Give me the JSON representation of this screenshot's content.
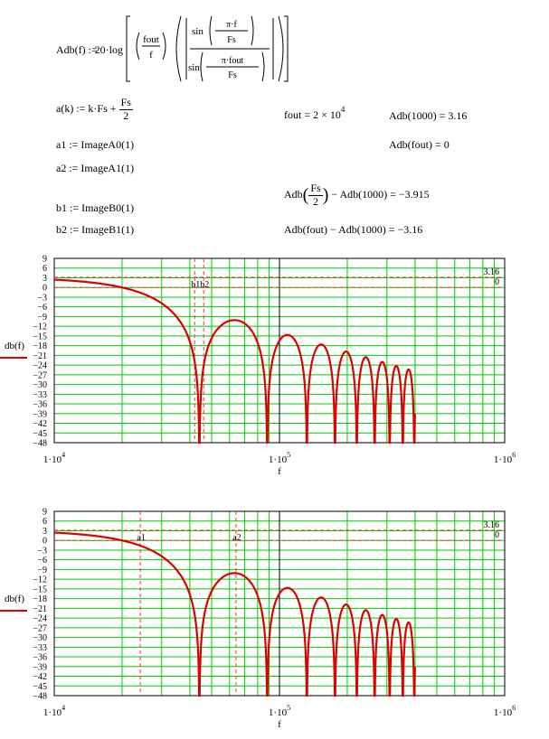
{
  "formulas": {
    "adb_lhs": "Adb(f) :=",
    "adb_factor": "20·log",
    "adb_fout": "fout",
    "adb_f": "f",
    "adb_sin": "sin",
    "adb_pi_f": "π·f",
    "adb_fs": "Fs",
    "adb_pi_fout": "π·fout",
    "a_def_lhs": "a(k) := k·Fs +",
    "a_def_num": "Fs",
    "a_def_den": "2",
    "a1_def": "a1 := ImageA0(1)",
    "a2_def": "a2 := ImageA1(1)",
    "b1_def": "b1 := ImageB0(1)",
    "b2_def": "b2 := ImageB1(1)",
    "fout_lhs": "fout = 2 × 10",
    "fout_exp": "4",
    "adb1000": "Adb(1000) = 3.16",
    "adbfout": "Adb(fout) = 0",
    "adbfs2_lhs": "Adb",
    "adbfs2_num": "Fs",
    "adbfs2_den": "2",
    "adbfs2_rhs": "− Adb(1000) = −3.915",
    "adbdiff": "Adb(fout) − Adb(1000) = −3.16"
  },
  "chart_data": [
    {
      "type": "line",
      "x_scale": "log",
      "xlim": [
        10000,
        1000000
      ],
      "ylim": [
        -48,
        9
      ],
      "yticks": [
        9,
        6,
        3,
        0,
        -3,
        -6,
        -9,
        -12,
        -15,
        -18,
        -21,
        -24,
        -27,
        -30,
        -33,
        -36,
        -39,
        -42,
        -45,
        -48
      ],
      "ytick_labels": [
        "9",
        "6",
        "3",
        "0",
        "−3",
        "−6",
        "−9",
        "−12",
        "−15",
        "−18",
        "−21",
        "−24",
        "−27",
        "−30",
        "−33",
        "−36",
        "−39",
        "−42",
        "−45",
        "−48"
      ],
      "xtick_bases": [
        "1·10",
        "1·10",
        "1·10"
      ],
      "xtick_exps": [
        "4",
        "5",
        "6"
      ],
      "xlabel": "f",
      "ylabel": "db(f)",
      "grid": true,
      "series": [
        {
          "expression": "Adb(f)",
          "sample_rate_Fs": 44100,
          "fout": 20000,
          "x_range": [
            10000,
            400000
          ]
        }
      ],
      "markers": [
        {
          "label": "b1",
          "x": 42000
        },
        {
          "label": "b2",
          "x": 46100
        }
      ],
      "hlines": [
        {
          "label": "3.16",
          "y": 3.16
        },
        {
          "label": "0",
          "y": 0
        }
      ],
      "colors": {
        "curve": "#dd0000",
        "grid": "#00cc00",
        "axis": "#000000",
        "marker": "#ff3333"
      }
    },
    {
      "type": "line",
      "x_scale": "log",
      "xlim": [
        10000,
        1000000
      ],
      "ylim": [
        -48,
        9
      ],
      "yticks": [
        9,
        6,
        3,
        0,
        -3,
        -6,
        -9,
        -12,
        -15,
        -18,
        -21,
        -24,
        -27,
        -30,
        -33,
        -36,
        -39,
        -42,
        -45,
        -48
      ],
      "ytick_labels": [
        "9",
        "6",
        "3",
        "0",
        "−3",
        "−6",
        "−9",
        "−12",
        "−15",
        "−18",
        "−21",
        "−24",
        "−27",
        "−30",
        "−33",
        "−36",
        "−39",
        "−42",
        "−45",
        "−48"
      ],
      "xtick_bases": [
        "1·10",
        "1·10",
        "1·10"
      ],
      "xtick_exps": [
        "4",
        "5",
        "6"
      ],
      "xlabel": "f",
      "ylabel": "db(f)",
      "grid": true,
      "series": [
        {
          "expression": "Adb(f)",
          "sample_rate_Fs": 44100,
          "fout": 20000,
          "x_range": [
            10000,
            400000
          ]
        }
      ],
      "markers": [
        {
          "label": "a1",
          "x": 24100
        },
        {
          "label": "a2",
          "x": 64100
        }
      ],
      "hlines": [
        {
          "label": "3.16",
          "y": 3.16
        },
        {
          "label": "0",
          "y": 0
        }
      ],
      "colors": {
        "curve": "#dd0000",
        "grid": "#00cc00",
        "axis": "#000000",
        "marker": "#ff3333"
      }
    }
  ]
}
